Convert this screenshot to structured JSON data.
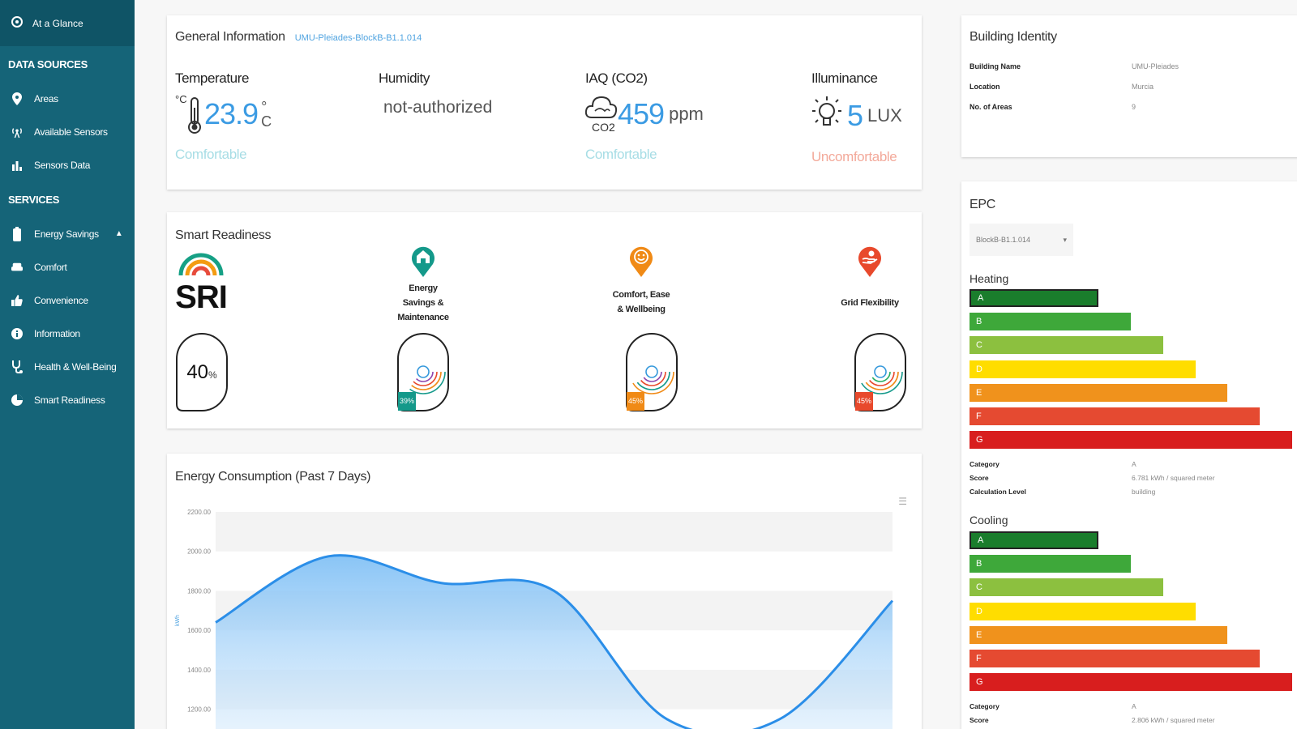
{
  "sidebar": {
    "top_item": "At a Glance",
    "section_data": "DATA SOURCES",
    "data_items": [
      "Areas",
      "Available Sensors",
      "Sensors Data"
    ],
    "section_services": "SERVICES",
    "service_items": [
      "Energy Savings",
      "Comfort",
      "Convenience",
      "Information",
      "Health & Well-Being",
      "Smart Readiness"
    ]
  },
  "general_info": {
    "title": "General Information",
    "subtitle": "UMU-Pleiades-BlockB-B1.1.014",
    "temperature": {
      "label": "Temperature",
      "value": "23.9",
      "unit": "°C",
      "icon_unit": "°C",
      "status": "Comfortable"
    },
    "humidity": {
      "label": "Humidity",
      "value": "not-authorized"
    },
    "iaq": {
      "label": "IAQ (CO2)",
      "value": "459",
      "unit": "ppm",
      "icon_text": "CO2",
      "status": "Comfortable"
    },
    "illuminance": {
      "label": "Illuminance",
      "value": "5",
      "unit": "LUX",
      "status": "Uncomfortable"
    }
  },
  "smart_readiness": {
    "title": "Smart Readiness",
    "logo_text": "SRI",
    "overall_percent": 40,
    "overall_value": "40",
    "overall_suffix": "%",
    "domains": [
      {
        "label_lines": [
          "Energy",
          "Savings &",
          "Maintenance"
        ],
        "percent": 39,
        "percent_text": "39%",
        "color": "#14998a"
      },
      {
        "label_lines": [
          "Comfort, Ease",
          "& Wellbeing"
        ],
        "percent": 45,
        "percent_text": "45%",
        "color": "#f08a16"
      },
      {
        "label_lines": [
          "Grid Flexibility"
        ],
        "percent": 45,
        "percent_text": "45%",
        "color": "#e8492c"
      }
    ]
  },
  "energy": {
    "title": "Energy Consumption (Past 7 Days)"
  },
  "chart_data": {
    "type": "area",
    "title": "Energy Consumption (Past 7 Days)",
    "ylabel": "kWh",
    "yticks": [
      "2200.00",
      "2000.00",
      "1800.00",
      "1600.00",
      "1400.00",
      "1200.00"
    ],
    "ylim": [
      1100,
      2200
    ],
    "grid": "horizontal bands",
    "x": [
      0,
      1,
      2,
      3,
      4,
      5,
      6
    ],
    "values": [
      1640,
      1975,
      1840,
      1800,
      1150,
      1150,
      1750
    ],
    "color": "#2b8ee8"
  },
  "building_identity": {
    "title": "Building Identity",
    "rows": [
      {
        "key": "Building Name",
        "value": "UMU-Pleiades"
      },
      {
        "key": "Location",
        "value": "Murcia"
      },
      {
        "key": "No. of Areas",
        "value": "9"
      }
    ]
  },
  "epc": {
    "title": "EPC",
    "select_value": "BlockB-B1.1.014",
    "bands": [
      {
        "letter": "A",
        "color": "#1a7d2c",
        "width": 0.4
      },
      {
        "letter": "B",
        "color": "#3ea83a",
        "width": 0.5
      },
      {
        "letter": "C",
        "color": "#8cc03f",
        "width": 0.6
      },
      {
        "letter": "D",
        "color": "#ffdd00",
        "width": 0.7
      },
      {
        "letter": "E",
        "color": "#f0921c",
        "width": 0.8
      },
      {
        "letter": "F",
        "color": "#e54a31",
        "width": 0.9
      },
      {
        "letter": "G",
        "color": "#d81e1e",
        "width": 1.0
      }
    ],
    "heating": {
      "label": "Heating",
      "rows": [
        {
          "key": "Category",
          "value": "A"
        },
        {
          "key": "Score",
          "value": "6.781 kWh / squared meter"
        },
        {
          "key": "Calculation Level",
          "value": "building"
        }
      ]
    },
    "cooling": {
      "label": "Cooling",
      "rows": [
        {
          "key": "Category",
          "value": "A"
        },
        {
          "key": "Score",
          "value": "2.806 kWh / squared meter"
        }
      ]
    }
  }
}
